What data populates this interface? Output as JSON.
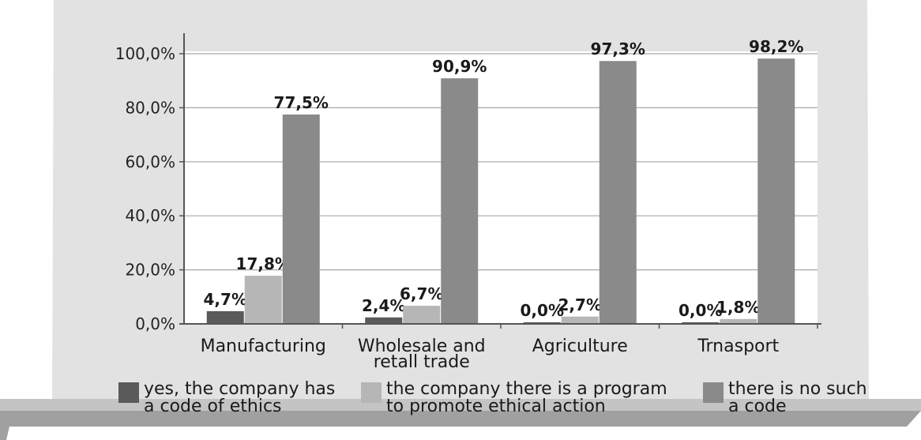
{
  "chart_data": {
    "type": "bar",
    "categories": [
      "Manufacturing",
      "Wholesale and\nretall trade",
      "Agriculture",
      "Trnasport"
    ],
    "series": [
      {
        "name": "yes, the company has\na code of ethics",
        "values": [
          4.7,
          2.4,
          0.0,
          0.0
        ],
        "labels": [
          "4,7%",
          "2,4%",
          "0,0%",
          "0,0%"
        ],
        "color": "#5a5a5a"
      },
      {
        "name": "the company there is a program\nto promote ethical action",
        "values": [
          17.8,
          6.7,
          2.7,
          1.8
        ],
        "labels": [
          "17,8%",
          "6,7%",
          "2,7%",
          "1,8%"
        ],
        "color": "#b6b6b6"
      },
      {
        "name": "there is no such\na code",
        "values": [
          77.5,
          90.9,
          97.3,
          98.2
        ],
        "labels": [
          "77,5%",
          "90,9%",
          "97,3%",
          "98,2%"
        ],
        "color": "#8a8a8a"
      }
    ],
    "yticks": [
      "0,0%",
      "20,0%",
      "40,0%",
      "60,0%",
      "80,0%",
      "100,0%"
    ],
    "ylim": [
      0,
      100
    ],
    "grid": true,
    "legend_position": "bottom"
  },
  "colors": {
    "panel": "#e2e2e2",
    "plot_bg": "#ffffff",
    "shelf": "#c4c4c4",
    "shelf_edge": "#a0a0a0",
    "grid": "#a8a8a8"
  }
}
